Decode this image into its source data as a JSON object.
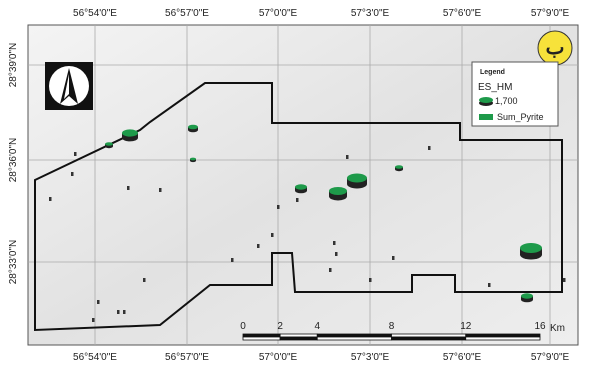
{
  "map": {
    "label": "ب",
    "x_labels": [
      "56°54'0\"E",
      "56°57'0\"E",
      "57°0'0\"E",
      "57°3'0\"E",
      "57°6'0\"E",
      "57°9'0\"E"
    ],
    "y_labels": [
      "28°39'0\"N",
      "28°36'0\"N",
      "28°33'0\"N"
    ],
    "legend": {
      "title": "Legend",
      "layer": "ES_HM",
      "size_label": "1,700",
      "item": "Sum_Pyrite"
    },
    "scale_bar": {
      "ticks": [
        0,
        2,
        4,
        8,
        12,
        16
      ],
      "unit": "Km"
    }
  }
}
